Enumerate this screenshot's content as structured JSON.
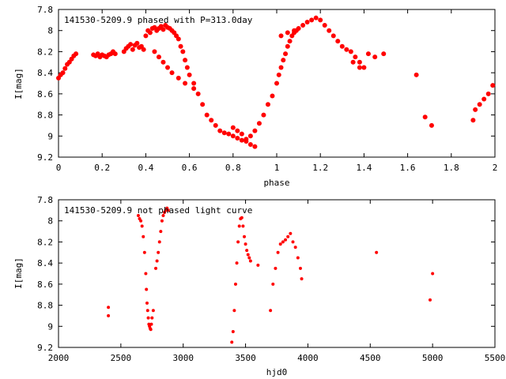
{
  "chart_data": [
    {
      "type": "scatter",
      "title": "141530-5209.9 phased with P=313.0day",
      "xlabel": "phase",
      "ylabel": "I[mag]",
      "xlim": [
        0,
        2
      ],
      "ylim": [
        7.8,
        9.2
      ],
      "y_inverted": true,
      "xticks": [
        0,
        0.2,
        0.4,
        0.6,
        0.8,
        1,
        1.2,
        1.4,
        1.6,
        1.8,
        2
      ],
      "xtick_labels": [
        "0",
        "0.2",
        "0.4",
        "0.6",
        "0.8",
        "1",
        "1.2",
        "1.4",
        "1.6",
        "1.8",
        "2"
      ],
      "yticks": [
        7.8,
        8,
        8.2,
        8.4,
        8.6,
        8.8,
        9,
        9.2
      ],
      "ytick_labels": [
        "7.8",
        "8",
        "8.2",
        "8.4",
        "8.6",
        "8.8",
        "9",
        "9.2"
      ],
      "marker_color": "#ff0000",
      "series": [
        {
          "x": [
            0,
            0.01,
            0.02,
            0.03,
            0.04,
            0.05,
            0.06,
            0.07,
            0.08,
            0.16,
            0.17,
            0.18,
            0.19,
            0.2,
            0.21,
            0.22,
            0.23,
            0.24,
            0.25,
            0.26,
            0.3,
            0.31,
            0.32,
            0.33,
            0.34,
            0.35,
            0.36,
            0.37,
            0.38,
            0.39,
            0.4,
            0.41,
            0.42,
            0.43,
            0.44,
            0.45,
            0.46,
            0.47,
            0.48,
            0.49,
            0.5,
            0.51,
            0.52,
            0.53,
            0.54,
            0.55,
            0.56,
            0.57,
            0.58,
            0.59,
            0.6,
            0.62,
            0.64,
            0.66,
            0.68,
            0.7,
            0.72,
            0.74,
            0.76,
            0.78,
            0.8,
            0.82,
            0.84,
            0.86,
            0.88,
            0.9,
            0.92,
            0.94,
            0.96,
            0.98,
            1.0,
            1.01,
            1.02,
            1.03,
            1.04,
            1.05,
            1.06,
            1.07,
            1.08,
            1.09,
            1.1,
            1.12,
            1.14,
            1.16,
            1.18,
            1.2,
            1.22,
            1.24,
            1.26,
            1.28,
            1.3,
            1.32,
            1.34,
            1.36,
            1.38,
            1.4,
            1.42,
            1.45,
            1.49,
            1.64,
            1.68,
            1.71,
            1.9,
            1.91,
            1.93,
            1.95,
            1.97,
            1.99,
            0.44,
            0.46,
            0.48,
            0.5,
            0.52,
            0.55,
            0.58,
            0.62,
            0.8,
            0.82,
            0.84,
            0.86,
            0.88,
            0.9,
            1.02,
            1.05,
            1.08,
            1.35,
            1.38
          ],
          "y": [
            8.45,
            8.42,
            8.4,
            8.36,
            8.32,
            8.3,
            8.27,
            8.24,
            8.22,
            8.23,
            8.24,
            8.22,
            8.25,
            8.23,
            8.24,
            8.25,
            8.23,
            8.22,
            8.2,
            8.22,
            8.2,
            8.17,
            8.15,
            8.13,
            8.18,
            8.14,
            8.12,
            8.16,
            8.15,
            8.18,
            8.05,
            8.0,
            8.02,
            7.98,
            7.97,
            8.0,
            7.98,
            7.96,
            7.99,
            7.95,
            7.97,
            7.98,
            8.0,
            8.02,
            8.05,
            8.08,
            8.15,
            8.2,
            8.28,
            8.35,
            8.42,
            8.5,
            8.6,
            8.7,
            8.8,
            8.85,
            8.9,
            8.95,
            8.97,
            8.98,
            9.0,
            9.02,
            9.04,
            9.03,
            9.0,
            8.95,
            8.88,
            8.8,
            8.7,
            8.62,
            8.5,
            8.42,
            8.35,
            8.28,
            8.22,
            8.15,
            8.1,
            8.05,
            8.02,
            8.0,
            7.98,
            7.95,
            7.92,
            7.9,
            7.88,
            7.9,
            7.95,
            8.0,
            8.05,
            8.1,
            8.15,
            8.18,
            8.2,
            8.25,
            8.3,
            8.35,
            8.22,
            8.25,
            8.22,
            8.42,
            8.82,
            8.9,
            8.85,
            8.75,
            8.7,
            8.65,
            8.6,
            8.52,
            8.2,
            8.25,
            8.3,
            8.35,
            8.4,
            8.45,
            8.5,
            8.55,
            8.92,
            8.95,
            8.98,
            9.05,
            9.08,
            9.1,
            8.05,
            8.02,
            8.0,
            8.3,
            8.35
          ]
        }
      ]
    },
    {
      "type": "scatter",
      "title": "141530-5209.9 not phased light curve",
      "xlabel": "hjd0",
      "ylabel": "I[mag]",
      "xlim": [
        2000,
        5500
      ],
      "ylim": [
        7.8,
        9.2
      ],
      "y_inverted": true,
      "xticks": [
        2000,
        2500,
        3000,
        3500,
        4000,
        4500,
        5000,
        5500
      ],
      "xtick_labels": [
        "2000",
        "2500",
        "3000",
        "3500",
        "4000",
        "4500",
        "5000",
        "5500"
      ],
      "yticks": [
        7.8,
        8,
        8.2,
        8.4,
        8.6,
        8.8,
        9,
        9.2
      ],
      "ytick_labels": [
        "7.8",
        "8",
        "8.2",
        "8.4",
        "8.6",
        "8.8",
        "9",
        "9.2"
      ],
      "marker_color": "#ff0000",
      "series": [
        {
          "x": [
            2400,
            2400,
            2640,
            2650,
            2660,
            2670,
            2680,
            2690,
            2700,
            2705,
            2710,
            2715,
            2720,
            2725,
            2730,
            2735,
            2740,
            2745,
            2750,
            2760,
            2780,
            2790,
            2800,
            2810,
            2820,
            2830,
            2840,
            2850,
            2860,
            2870,
            2880,
            3390,
            3400,
            3410,
            3420,
            3430,
            3440,
            3450,
            3460,
            3470,
            3480,
            3490,
            3500,
            3510,
            3520,
            3530,
            3540,
            3600,
            3700,
            3720,
            3740,
            3760,
            3780,
            3800,
            3820,
            3840,
            3860,
            3880,
            3900,
            3920,
            3940,
            3950,
            4550,
            4980,
            5000
          ],
          "y": [
            8.82,
            8.9,
            7.95,
            7.98,
            8.0,
            8.05,
            8.15,
            8.3,
            8.5,
            8.65,
            8.78,
            8.85,
            8.92,
            8.98,
            9.0,
            9.02,
            9.03,
            8.98,
            8.92,
            8.85,
            8.45,
            8.38,
            8.3,
            8.2,
            8.1,
            8.0,
            7.95,
            7.92,
            7.9,
            7.88,
            7.9,
            9.15,
            9.05,
            8.85,
            8.6,
            8.4,
            8.2,
            8.05,
            7.98,
            7.97,
            8.05,
            8.15,
            8.22,
            8.28,
            8.32,
            8.35,
            8.38,
            8.42,
            8.85,
            8.6,
            8.45,
            8.3,
            8.22,
            8.2,
            8.18,
            8.15,
            8.12,
            8.2,
            8.25,
            8.35,
            8.45,
            8.55,
            8.3,
            8.75,
            8.5
          ]
        }
      ]
    }
  ]
}
